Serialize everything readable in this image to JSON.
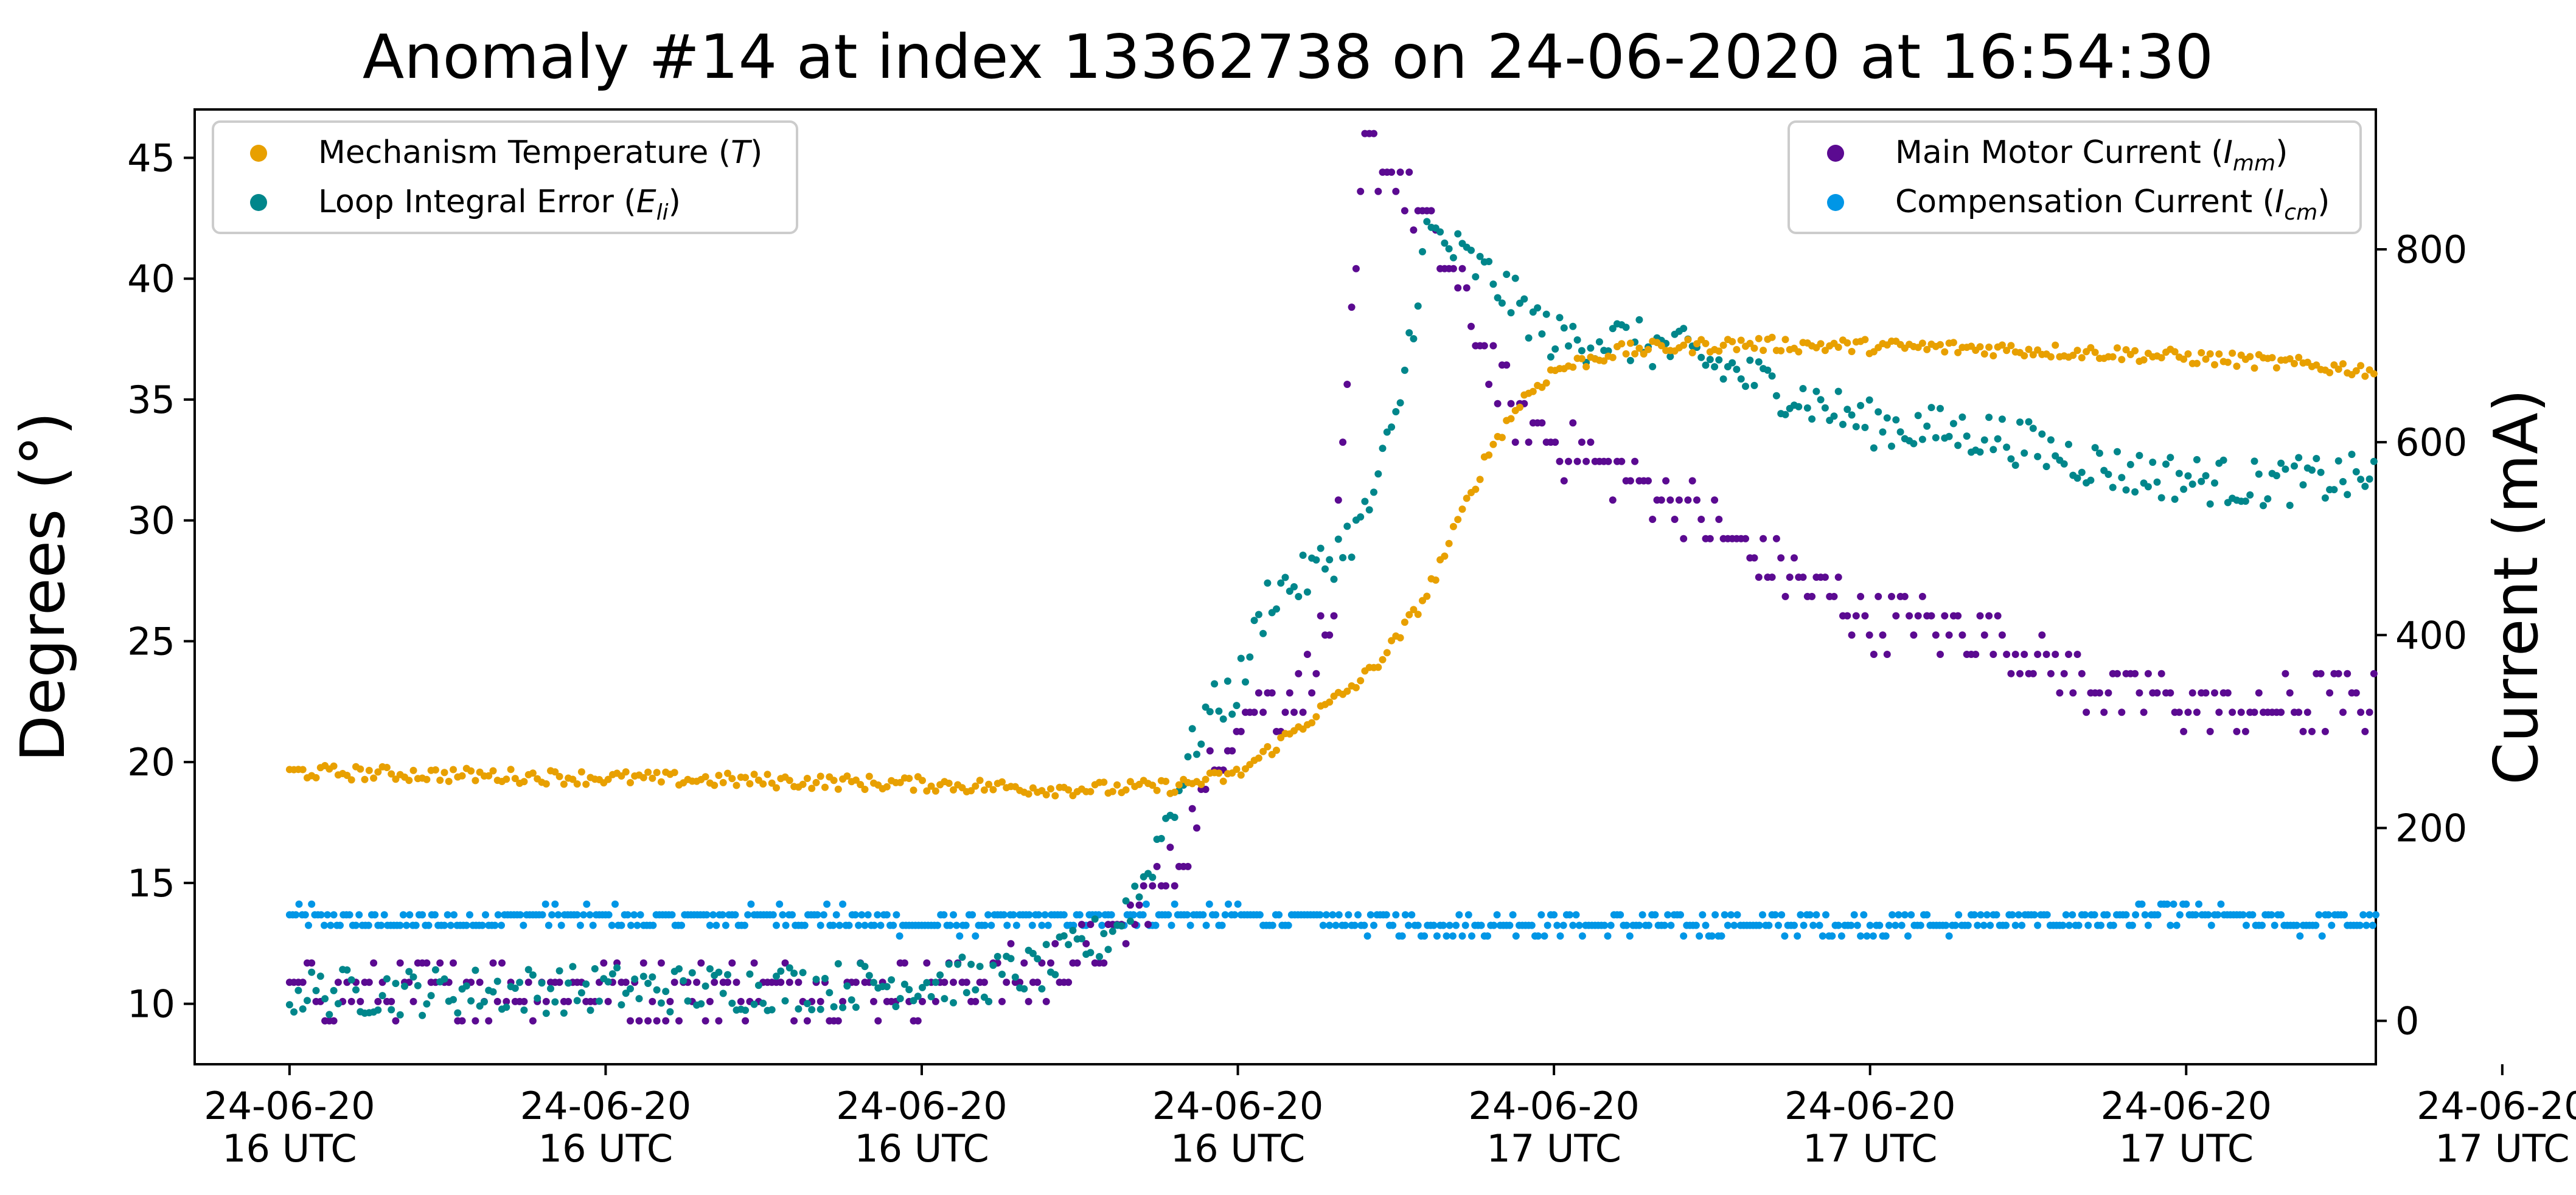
{
  "chart_data": {
    "type": "scatter",
    "title": "Anomaly #14 at index 13362738 on 24-06-2020 at 16:54:30",
    "ylabel_left": "Degrees (°)",
    "ylabel_right": "Current (mA)",
    "xlabel": "",
    "grid": false,
    "left_axis": {
      "ylim": [
        7.5,
        47
      ],
      "ticks": [
        10,
        15,
        20,
        25,
        30,
        35,
        40,
        45
      ]
    },
    "right_axis": {
      "ylim": [
        -45,
        945
      ],
      "ticks": [
        0,
        200,
        400,
        600,
        800
      ]
    },
    "x_axis": {
      "unit": "minutes after 16:00 UTC (24-06-2020)",
      "xlim": [
        38.5,
        73
      ],
      "ticks": [
        {
          "v": 40,
          "line1": "24-06-20",
          "line2": "16 UTC"
        },
        {
          "v": 45,
          "line1": "24-06-20",
          "line2": "16 UTC"
        },
        {
          "v": 50,
          "line1": "24-06-20",
          "line2": "16 UTC"
        },
        {
          "v": 55,
          "line1": "24-06-20",
          "line2": "16 UTC"
        },
        {
          "v": 60,
          "line1": "24-06-20",
          "line2": "17 UTC"
        },
        {
          "v": 65,
          "line1": "24-06-20",
          "line2": "17 UTC"
        },
        {
          "v": 70,
          "line1": "24-06-20",
          "line2": "17 UTC"
        },
        {
          "v": 75,
          "line1": "24-06-20",
          "line2": "17 UTC"
        }
      ]
    },
    "legend_left": {
      "placement": "upper-left",
      "entries": [
        {
          "label": "Mechanism Temperature (",
          "sym": "T",
          "sub": "",
          "close": ")",
          "color": "#e8a000"
        },
        {
          "label": "Loop Integral Error (",
          "sym": "E",
          "sub": "li",
          "close": ")",
          "color": "#00868b"
        }
      ]
    },
    "legend_right": {
      "placement": "upper-right",
      "entries": [
        {
          "label": "Main Motor Current (",
          "sym": "I",
          "sub": "mm",
          "close": ")",
          "color": "#5b0a91"
        },
        {
          "label": "Compensation Current (",
          "sym": "I",
          "sub": "cm",
          "close": ")",
          "color": "#0096e6"
        }
      ]
    },
    "series": [
      {
        "name": "Mechanism Temperature (T)",
        "axis": "left",
        "color": "#e8a000",
        "x": [
          40,
          42,
          44,
          46,
          48,
          50,
          52,
          53,
          54,
          55,
          55.5,
          56,
          56.5,
          57,
          57.5,
          58,
          58.5,
          59,
          59.5,
          60,
          61,
          62,
          63,
          65,
          67,
          69,
          71,
          73
        ],
        "y": [
          19.6,
          19.5,
          19.4,
          19.3,
          19.2,
          19.1,
          18.9,
          18.9,
          19.0,
          19.5,
          20.5,
          21.5,
          22.5,
          23.5,
          25,
          27,
          30,
          33,
          35,
          36.2,
          37,
          37.2,
          37.3,
          37.2,
          37.1,
          36.9,
          36.6,
          36.2
        ]
      },
      {
        "name": "Loop Integral Error (Eli)",
        "axis": "left",
        "color": "#00868b",
        "x": [
          40,
          42,
          44,
          46,
          48,
          50,
          51,
          52,
          53,
          53.5,
          54,
          54.5,
          55,
          55.5,
          56,
          56.5,
          57,
          57.5,
          58,
          59,
          60,
          61,
          62,
          63,
          65,
          67,
          69,
          71,
          73
        ],
        "y": [
          10.5,
          10.5,
          10.6,
          10.6,
          10.7,
          10.9,
          11.0,
          11.5,
          13.0,
          15.0,
          18.5,
          22.0,
          23.0,
          27.0,
          27.5,
          28.5,
          30.0,
          34.0,
          42.0,
          40.0,
          37.5,
          37.5,
          37.0,
          36.0,
          34.0,
          33.5,
          32.0,
          31.5,
          31.8
        ]
      },
      {
        "name": "Main Motor Current (Imm)",
        "axis": "right",
        "color": "#5b0a91",
        "x": [
          40,
          42,
          44,
          46,
          48,
          50,
          51,
          52,
          52.5,
          53,
          53.5,
          54,
          54.5,
          55,
          55.5,
          56,
          56.5,
          57,
          57.5,
          58,
          58.5,
          59,
          59.5,
          60,
          61,
          62,
          63,
          64,
          65,
          66,
          67,
          68,
          69,
          70,
          71,
          72,
          73
        ],
        "y": [
          30,
          30,
          35,
          30,
          35,
          35,
          40,
          45,
          70,
          80,
          120,
          160,
          240,
          320,
          325,
          340,
          420,
          900,
          880,
          820,
          760,
          680,
          620,
          600,
          570,
          540,
          490,
          450,
          420,
          410,
          400,
          360,
          340,
          330,
          320,
          330,
          330
        ]
      },
      {
        "name": "Compensation Current (Icm)",
        "axis": "right",
        "color": "#0096e6",
        "x": [
          40,
          42,
          44,
          46,
          48,
          50,
          52,
          54,
          56,
          58,
          60,
          62,
          64,
          66,
          68,
          70,
          72,
          73
        ],
        "y": [
          110,
          100,
          110,
          105,
          110,
          100,
          105,
          110,
          105,
          100,
          100,
          100,
          100,
          100,
          105,
          110,
          100,
          105
        ]
      }
    ]
  }
}
